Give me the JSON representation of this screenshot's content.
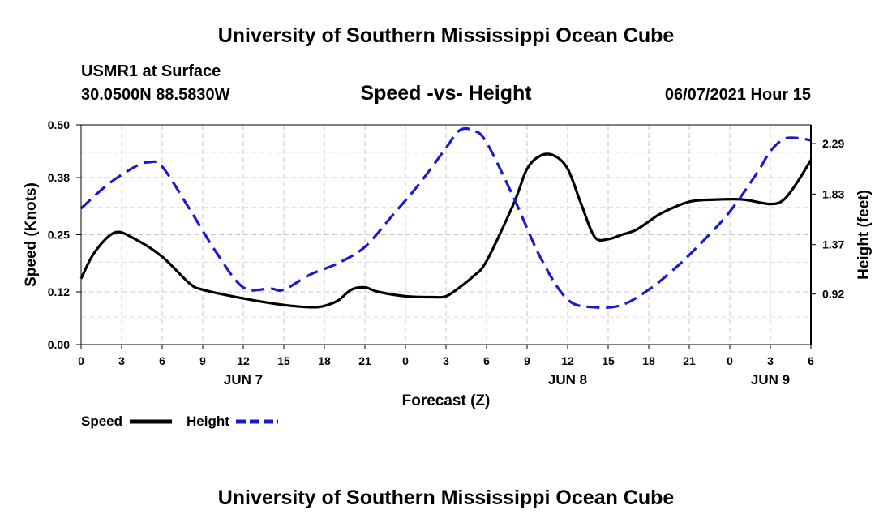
{
  "header": {
    "title": "University of Southern Mississippi Ocean Cube",
    "station": "USMR1 at Surface",
    "coords": "30.0500N  88.5830W",
    "chart_title": "Speed -vs- Height",
    "datetime": "06/07/2021 Hour 15"
  },
  "footer": {
    "title": "University of Southern Mississippi Ocean Cube"
  },
  "colors": {
    "speed": "#000000",
    "height": "#1a1ad0",
    "grid": "#c8c8c8"
  },
  "chart_data": {
    "type": "line",
    "title": "Speed -vs- Height",
    "xlabel": "Forecast (Z)",
    "ylabel": "Speed (Knots)",
    "y2label": "Height (feet)",
    "x_ticks": [
      "0",
      "3",
      "6",
      "9",
      "12",
      "15",
      "18",
      "21",
      "0",
      "3",
      "6",
      "9",
      "12",
      "15",
      "18",
      "21",
      "0",
      "3",
      "6"
    ],
    "day_labels": [
      {
        "label": "JUN 7",
        "hour": 12
      },
      {
        "label": "JUN 8",
        "hour": 36
      },
      {
        "label": "JUN 9",
        "hour": 51
      }
    ],
    "ylim": [
      0,
      0.5
    ],
    "y_ticks": [
      "0.00",
      "0.12",
      "0.25",
      "0.38",
      "0.50"
    ],
    "y2lim": [
      0.46,
      2.46
    ],
    "y2_ticks": [
      "0.92",
      "1.37",
      "1.83",
      "2.29"
    ],
    "legend": [
      {
        "name": "Speed",
        "color": "#000000",
        "dash": "solid"
      },
      {
        "name": "Height",
        "color": "#1a1ad0",
        "dash": "dashed"
      }
    ],
    "series": [
      {
        "name": "Speed",
        "axis": "left",
        "x": [
          0,
          1,
          2.5,
          4,
          6,
          8,
          9,
          12,
          15,
          17,
          18,
          19,
          20,
          21,
          22,
          24,
          26,
          27,
          28,
          29,
          30,
          32,
          33,
          34,
          35,
          36,
          37,
          38,
          39,
          40,
          41,
          42,
          43,
          45,
          47,
          49,
          51,
          52,
          53,
          54
        ],
        "y": [
          0.15,
          0.21,
          0.255,
          0.24,
          0.2,
          0.14,
          0.125,
          0.105,
          0.09,
          0.085,
          0.088,
          0.1,
          0.125,
          0.13,
          0.12,
          0.11,
          0.108,
          0.11,
          0.13,
          0.155,
          0.19,
          0.32,
          0.4,
          0.43,
          0.43,
          0.4,
          0.32,
          0.245,
          0.24,
          0.25,
          0.26,
          0.28,
          0.3,
          0.325,
          0.33,
          0.33,
          0.32,
          0.33,
          0.37,
          0.42
        ]
      },
      {
        "name": "Height",
        "axis": "right",
        "x": [
          0,
          2,
          4,
          5,
          6,
          8,
          10,
          12,
          14,
          15,
          17,
          19,
          21,
          23,
          25,
          27,
          28,
          29,
          30,
          32,
          34,
          36,
          38,
          40,
          42,
          44,
          46,
          48,
          50,
          51,
          52,
          53,
          54
        ],
        "y": [
          1.7,
          1.92,
          2.08,
          2.12,
          2.08,
          1.7,
          1.3,
          0.98,
          0.97,
          0.96,
          1.1,
          1.2,
          1.35,
          1.63,
          1.92,
          2.25,
          2.41,
          2.41,
          2.3,
          1.8,
          1.25,
          0.87,
          0.8,
          0.82,
          0.96,
          1.16,
          1.4,
          1.67,
          2.02,
          2.22,
          2.33,
          2.34,
          2.32
        ]
      }
    ]
  }
}
